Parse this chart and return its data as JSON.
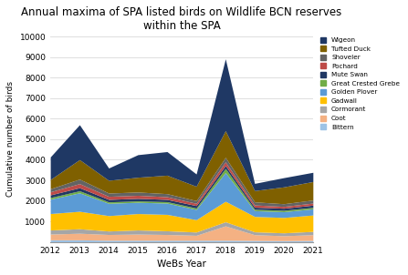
{
  "title": "Annual maxima of SPA listed birds on Wildlife BCN reserves\nwithin the SPA",
  "xlabel": "WeBs Year",
  "ylabel": "Cumulative number of birds",
  "years": [
    2012,
    2013,
    2014,
    2015,
    2016,
    2017,
    2018,
    2019,
    2020,
    2021
  ],
  "ylim": [
    0,
    10000
  ],
  "yticks": [
    0,
    1000,
    2000,
    3000,
    4000,
    5000,
    6000,
    7000,
    8000,
    9000,
    10000
  ],
  "series": [
    {
      "name": "Bittern",
      "color": "#9DC3E6",
      "values": [
        100,
        100,
        80,
        80,
        80,
        80,
        80,
        70,
        60,
        70
      ]
    },
    {
      "name": "Coot",
      "color": "#F4B183",
      "values": [
        280,
        320,
        280,
        300,
        280,
        240,
        700,
        280,
        240,
        280
      ]
    },
    {
      "name": "Cormorant",
      "color": "#A6A6A6",
      "values": [
        200,
        220,
        170,
        200,
        180,
        160,
        200,
        140,
        140,
        160
      ]
    },
    {
      "name": "Gadwall",
      "color": "#FFC000",
      "values": [
        800,
        850,
        750,
        800,
        800,
        600,
        1000,
        750,
        750,
        800
      ]
    },
    {
      "name": "Golden Plover",
      "color": "#5B9BD5",
      "values": [
        700,
        900,
        600,
        550,
        550,
        500,
        1400,
        280,
        280,
        300
      ]
    },
    {
      "name": "Great Crested Grebe",
      "color": "#70AD47",
      "values": [
        80,
        100,
        70,
        70,
        70,
        70,
        200,
        70,
        70,
        70
      ]
    },
    {
      "name": "Mute Swan",
      "color": "#203864",
      "values": [
        130,
        150,
        120,
        120,
        110,
        120,
        140,
        100,
        100,
        110
      ]
    },
    {
      "name": "Pochard",
      "color": "#BE4B48",
      "values": [
        150,
        200,
        150,
        150,
        130,
        110,
        180,
        110,
        90,
        100
      ]
    },
    {
      "name": "Shoveler",
      "color": "#636363",
      "values": [
        150,
        220,
        160,
        160,
        150,
        130,
        220,
        150,
        130,
        150
      ]
    },
    {
      "name": "Tufted Duck",
      "color": "#7F6000",
      "values": [
        450,
        950,
        620,
        720,
        900,
        700,
        1300,
        550,
        820,
        900
      ]
    },
    {
      "name": "Wigeon",
      "color": "#1F3864",
      "values": [
        1100,
        1700,
        600,
        1100,
        1150,
        600,
        3500,
        350,
        450,
        450
      ]
    }
  ],
  "figsize": [
    4.47,
    3.02
  ],
  "dpi": 100
}
